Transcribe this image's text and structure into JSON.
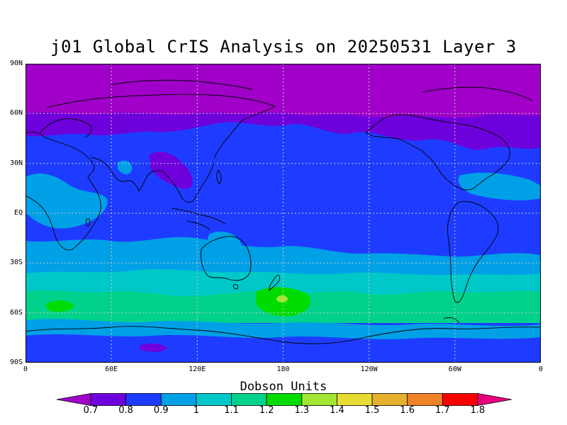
{
  "title": "j01 Global CrIS Analysis on 20250531 Layer 3",
  "lat_labels": [
    "90N",
    "60N",
    "30N",
    "EQ",
    "30S",
    "60S",
    "90S"
  ],
  "lon_labels": [
    "0",
    "60E",
    "120E",
    "180",
    "120W",
    "60W",
    "0"
  ],
  "colorbar": {
    "title": "Dobson Units",
    "labels": [
      "0.7",
      "0.8",
      "0.9",
      "1",
      "1.1",
      "1.2",
      "1.3",
      "1.4",
      "1.5",
      "1.6",
      "1.7",
      "1.8"
    ],
    "colors": [
      "#a000c8",
      "#6e00dc",
      "#1e3cff",
      "#00a0e6",
      "#00c8c8",
      "#00d28c",
      "#00dc00",
      "#a0e632",
      "#e6dc32",
      "#e6af2d",
      "#f08228",
      "#fa0000",
      "#e6007f"
    ]
  }
}
